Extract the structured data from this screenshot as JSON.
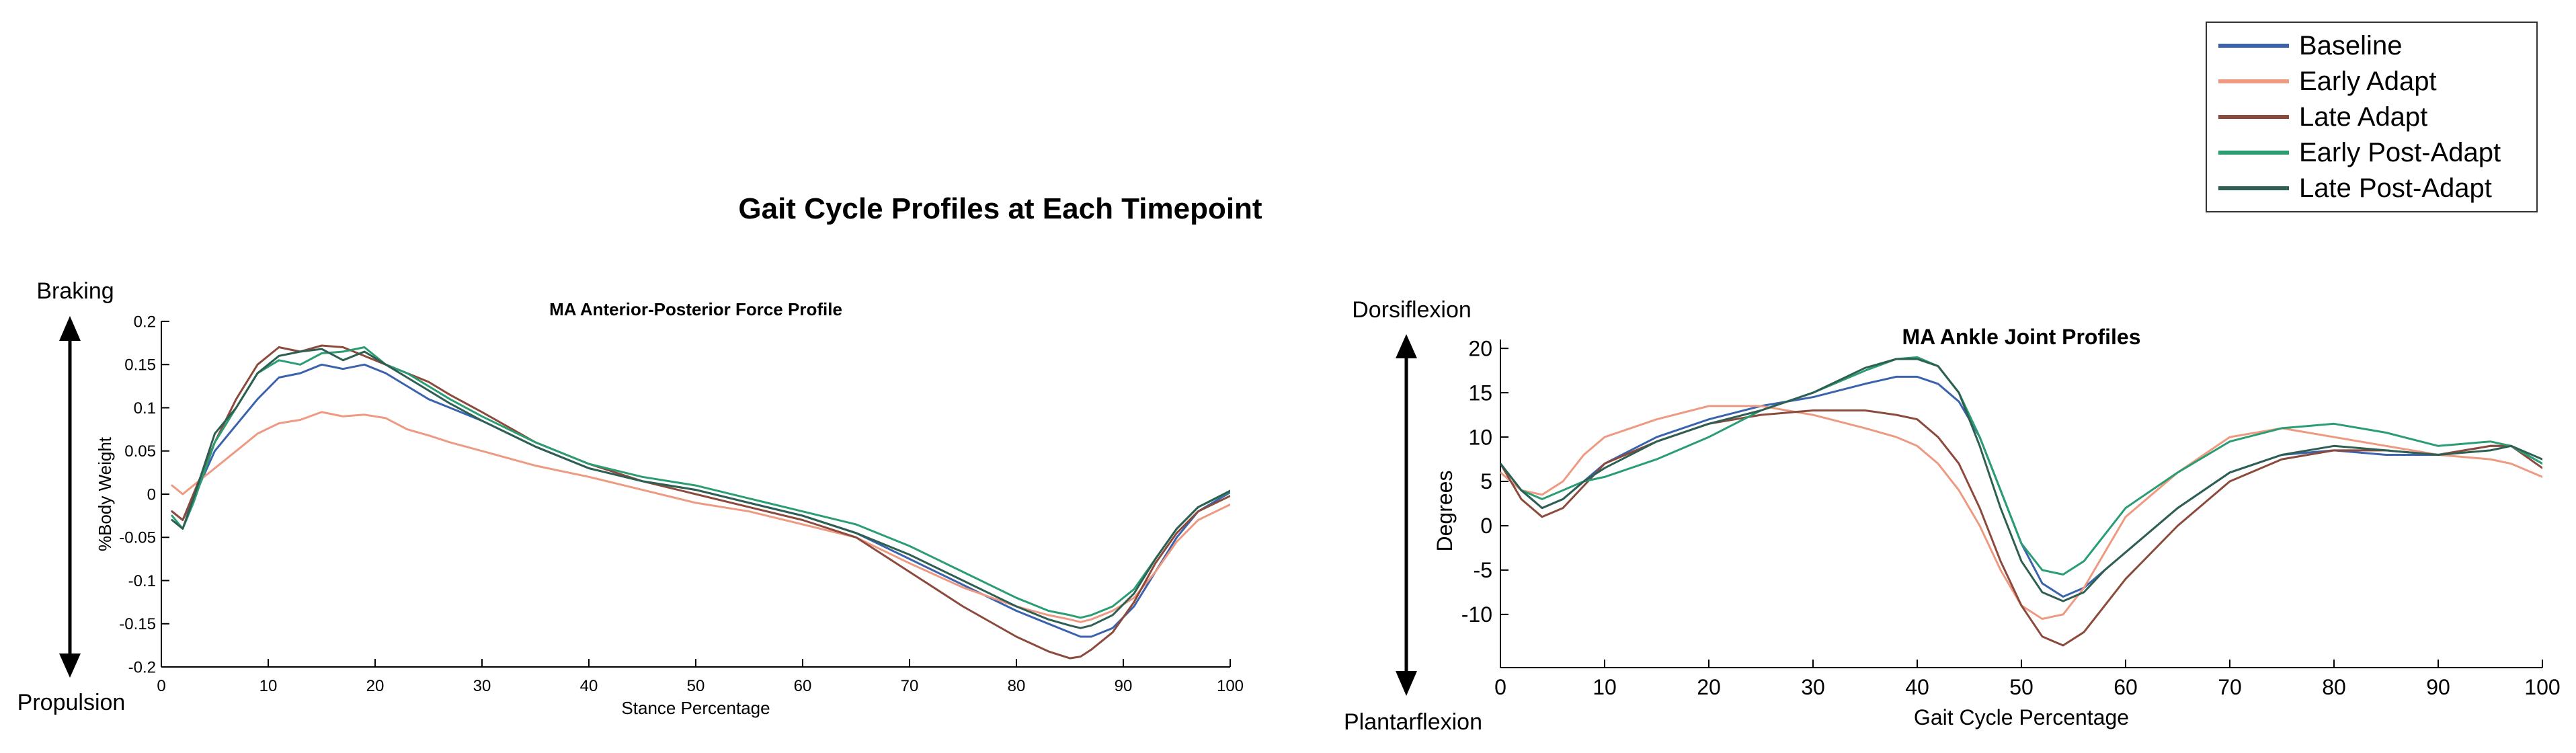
{
  "figure": {
    "title": "Gait Cycle Profiles at Each Timepoint"
  },
  "legend": {
    "position": "top-right",
    "items": [
      {
        "label": "Baseline",
        "color": "#3b63ad"
      },
      {
        "label": "Early Adapt",
        "color": "#ee9a82"
      },
      {
        "label": "Late Adapt",
        "color": "#8c4a3c"
      },
      {
        "label": "Early Post-Adapt",
        "color": "#2a9d72"
      },
      {
        "label": "Late Post-Adapt",
        "color": "#2f5f52"
      }
    ]
  },
  "left_annotation": {
    "top": "Braking",
    "bottom": "Propulsion"
  },
  "right_annotation": {
    "top": "Dorsiflexion",
    "bottom": "Plantarflexion"
  },
  "chart_data": [
    {
      "type": "line",
      "title": "MA Anterior-Posterior Force Profile",
      "xlabel": "Stance Percentage",
      "ylabel": "%Body Weight",
      "xlim": [
        0,
        100
      ],
      "ylim": [
        -0.2,
        0.2
      ],
      "xticks": [
        0,
        10,
        20,
        30,
        40,
        50,
        60,
        70,
        80,
        90,
        100
      ],
      "xtick_labels": [
        "0",
        "10",
        "20",
        "30",
        "40",
        "50",
        "60",
        "70",
        "80",
        "90",
        "100"
      ],
      "yticks": [
        0.2,
        0.15,
        0.1,
        0.05,
        0,
        -0.05,
        -0.1,
        -0.15,
        -0.2
      ],
      "ytick_labels": [
        "0.2",
        "0.15",
        "0.1",
        "0.05",
        "0",
        "-0.05",
        "-0.1",
        "-0.15",
        "-0.2"
      ],
      "grid": false,
      "series": [
        {
          "name": "Baseline",
          "x": [
            1,
            2,
            3,
            5,
            7,
            9,
            11,
            13,
            15,
            17,
            19,
            21,
            23,
            25,
            27,
            30,
            35,
            40,
            45,
            50,
            55,
            60,
            65,
            70,
            75,
            80,
            83,
            85,
            86,
            87,
            89,
            91,
            93,
            95,
            97,
            100
          ],
          "values": [
            -0.02,
            -0.03,
            -0.005,
            0.05,
            0.08,
            0.11,
            0.135,
            0.14,
            0.15,
            0.145,
            0.15,
            0.14,
            0.125,
            0.11,
            0.1,
            0.085,
            0.055,
            0.03,
            0.015,
            0.005,
            -0.01,
            -0.025,
            -0.045,
            -0.075,
            -0.105,
            -0.135,
            -0.15,
            -0.16,
            -0.165,
            -0.165,
            -0.155,
            -0.13,
            -0.09,
            -0.05,
            -0.02,
            0.002
          ]
        },
        {
          "name": "Early Adapt",
          "x": [
            1,
            2,
            3,
            5,
            7,
            9,
            11,
            13,
            15,
            17,
            19,
            21,
            23,
            25,
            27,
            30,
            35,
            40,
            45,
            50,
            55,
            60,
            65,
            70,
            75,
            80,
            83,
            85,
            86,
            87,
            89,
            91,
            93,
            95,
            97,
            100
          ],
          "values": [
            0.01,
            0.0,
            0.01,
            0.03,
            0.05,
            0.07,
            0.082,
            0.086,
            0.095,
            0.09,
            0.092,
            0.088,
            0.075,
            0.068,
            0.06,
            0.05,
            0.033,
            0.02,
            0.005,
            -0.01,
            -0.02,
            -0.035,
            -0.05,
            -0.08,
            -0.108,
            -0.13,
            -0.14,
            -0.145,
            -0.148,
            -0.145,
            -0.135,
            -0.12,
            -0.09,
            -0.055,
            -0.03,
            -0.012
          ]
        },
        {
          "name": "Late Adapt",
          "x": [
            1,
            2,
            3,
            5,
            7,
            9,
            11,
            13,
            15,
            17,
            19,
            21,
            23,
            25,
            27,
            30,
            35,
            40,
            45,
            50,
            55,
            60,
            65,
            70,
            75,
            80,
            83,
            85,
            86,
            87,
            89,
            91,
            93,
            95,
            97,
            100
          ],
          "values": [
            -0.02,
            -0.03,
            0.0,
            0.06,
            0.11,
            0.15,
            0.17,
            0.165,
            0.172,
            0.17,
            0.16,
            0.15,
            0.14,
            0.13,
            0.115,
            0.095,
            0.06,
            0.035,
            0.015,
            0.0,
            -0.015,
            -0.03,
            -0.05,
            -0.09,
            -0.13,
            -0.165,
            -0.182,
            -0.19,
            -0.188,
            -0.18,
            -0.16,
            -0.125,
            -0.08,
            -0.045,
            -0.02,
            -0.002
          ]
        },
        {
          "name": "Early Post-Adapt",
          "x": [
            1,
            2,
            3,
            5,
            7,
            9,
            11,
            13,
            15,
            17,
            19,
            21,
            23,
            25,
            27,
            30,
            35,
            40,
            45,
            50,
            55,
            60,
            65,
            70,
            75,
            80,
            83,
            85,
            86,
            87,
            89,
            91,
            93,
            95,
            97,
            100
          ],
          "values": [
            -0.025,
            -0.04,
            -0.01,
            0.06,
            0.1,
            0.14,
            0.155,
            0.15,
            0.163,
            0.165,
            0.17,
            0.15,
            0.14,
            0.125,
            0.11,
            0.09,
            0.06,
            0.035,
            0.02,
            0.01,
            -0.005,
            -0.02,
            -0.035,
            -0.06,
            -0.09,
            -0.12,
            -0.135,
            -0.14,
            -0.143,
            -0.14,
            -0.13,
            -0.11,
            -0.075,
            -0.04,
            -0.015,
            0.003
          ]
        },
        {
          "name": "Late Post-Adapt",
          "x": [
            1,
            2,
            3,
            5,
            7,
            9,
            11,
            13,
            15,
            17,
            19,
            21,
            23,
            25,
            27,
            30,
            35,
            40,
            45,
            50,
            55,
            60,
            65,
            70,
            75,
            80,
            83,
            85,
            86,
            87,
            89,
            91,
            93,
            95,
            97,
            100
          ],
          "values": [
            -0.03,
            -0.04,
            -0.005,
            0.07,
            0.1,
            0.14,
            0.16,
            0.165,
            0.168,
            0.155,
            0.165,
            0.15,
            0.135,
            0.12,
            0.105,
            0.085,
            0.055,
            0.03,
            0.015,
            0.005,
            -0.01,
            -0.025,
            -0.045,
            -0.07,
            -0.1,
            -0.13,
            -0.145,
            -0.152,
            -0.155,
            -0.152,
            -0.14,
            -0.115,
            -0.075,
            -0.04,
            -0.015,
            0.004
          ]
        }
      ]
    },
    {
      "type": "line",
      "title": "MA Ankle Joint Profiles",
      "xlabel": "Gait Cycle Percentage",
      "ylabel": "Degrees",
      "xlim": [
        0,
        100
      ],
      "ylim": [
        -16,
        21
      ],
      "xticks": [
        0,
        10,
        20,
        30,
        40,
        50,
        60,
        70,
        80,
        90,
        100
      ],
      "xtick_labels": [
        "0",
        "10",
        "20",
        "30",
        "40",
        "50",
        "60",
        "70",
        "80",
        "90",
        "100"
      ],
      "yticks": [
        20,
        15,
        10,
        5,
        0,
        -5,
        -10
      ],
      "ytick_labels": [
        "20",
        "15",
        "10",
        "5",
        "0",
        "-5",
        "-10"
      ],
      "grid": false,
      "series": [
        {
          "name": "Baseline",
          "x": [
            0,
            2,
            4,
            6,
            8,
            10,
            15,
            20,
            25,
            30,
            35,
            38,
            40,
            42,
            44,
            46,
            48,
            50,
            52,
            54,
            56,
            58,
            60,
            65,
            70,
            75,
            80,
            85,
            90,
            95,
            97,
            100
          ],
          "values": [
            7,
            4,
            2,
            3,
            5,
            7,
            10,
            12,
            13.5,
            14.5,
            16,
            16.8,
            16.8,
            16,
            14,
            10,
            4,
            -2,
            -6.5,
            -8,
            -7,
            -5,
            -3,
            2,
            6,
            8,
            8.5,
            8,
            8,
            9,
            9,
            7
          ]
        },
        {
          "name": "Early Adapt",
          "x": [
            0,
            2,
            4,
            6,
            8,
            10,
            15,
            20,
            25,
            30,
            35,
            38,
            40,
            42,
            44,
            46,
            48,
            50,
            52,
            54,
            56,
            58,
            60,
            65,
            70,
            75,
            80,
            85,
            90,
            95,
            97,
            100
          ],
          "values": [
            6,
            4,
            3.5,
            5,
            8,
            10,
            12,
            13.5,
            13.5,
            12.5,
            11,
            10,
            9,
            7,
            4,
            0,
            -5,
            -9,
            -10.5,
            -10,
            -7,
            -3,
            1,
            6,
            10,
            11,
            10,
            9,
            8,
            7.5,
            7,
            5.5
          ]
        },
        {
          "name": "Late Adapt",
          "x": [
            0,
            2,
            4,
            6,
            8,
            10,
            15,
            20,
            25,
            30,
            35,
            38,
            40,
            42,
            44,
            46,
            48,
            50,
            52,
            54,
            56,
            58,
            60,
            65,
            70,
            75,
            80,
            85,
            90,
            95,
            97,
            100
          ],
          "values": [
            7,
            3,
            1,
            2,
            4.5,
            7,
            9.5,
            11.5,
            12.5,
            13,
            13,
            12.5,
            12,
            10,
            7,
            2,
            -4,
            -9,
            -12.5,
            -13.5,
            -12,
            -9,
            -6,
            0,
            5,
            7.5,
            8.5,
            8.5,
            8,
            9,
            9,
            6.5
          ]
        },
        {
          "name": "Early Post-Adapt",
          "x": [
            0,
            2,
            4,
            6,
            8,
            10,
            15,
            20,
            25,
            30,
            35,
            38,
            40,
            42,
            44,
            46,
            48,
            50,
            52,
            54,
            56,
            58,
            60,
            65,
            70,
            75,
            80,
            85,
            90,
            95,
            97,
            100
          ],
          "values": [
            7,
            4,
            3,
            4,
            5,
            5.5,
            7.5,
            10,
            13,
            15,
            17.5,
            18.8,
            19,
            18,
            15,
            10,
            4,
            -2,
            -5,
            -5.5,
            -4,
            -1,
            2,
            6,
            9.5,
            11,
            11.5,
            10.5,
            9,
            9.5,
            9,
            7
          ]
        },
        {
          "name": "Late Post-Adapt",
          "x": [
            0,
            2,
            4,
            6,
            8,
            10,
            15,
            20,
            25,
            30,
            35,
            38,
            40,
            42,
            44,
            46,
            48,
            50,
            52,
            54,
            56,
            58,
            60,
            65,
            70,
            75,
            80,
            85,
            90,
            95,
            97,
            100
          ],
          "values": [
            7,
            4,
            2,
            3,
            5,
            6.5,
            9.5,
            11.5,
            13,
            15,
            17.8,
            18.8,
            18.8,
            18,
            15,
            9,
            2,
            -4,
            -7.5,
            -8.5,
            -7.5,
            -5,
            -3,
            2,
            6,
            8,
            9,
            8.5,
            8,
            8.5,
            9,
            7.5
          ]
        }
      ]
    }
  ]
}
